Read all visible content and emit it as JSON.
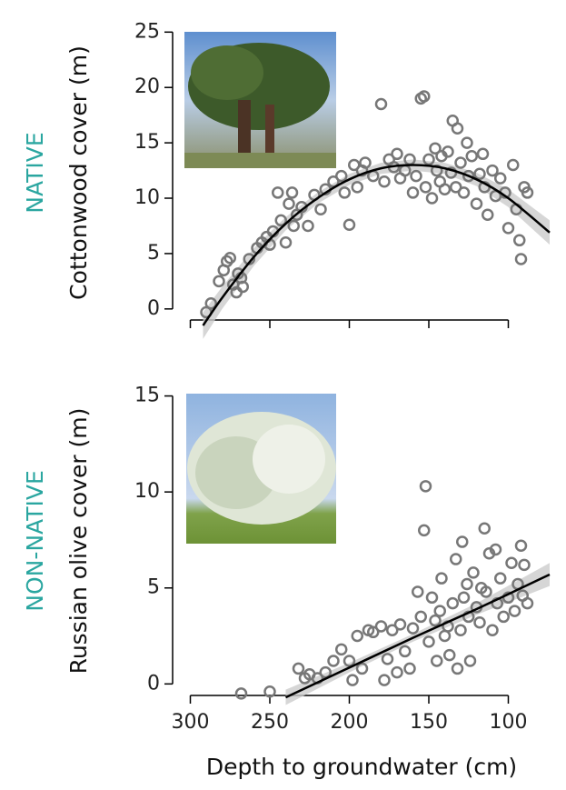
{
  "chart_data": [
    {
      "type": "scatter",
      "group_label": "NATIVE",
      "group_color": "#2aa6a0",
      "ylabel": "Cottonwood cover (m)",
      "xlim": [
        310,
        70
      ],
      "ylim": [
        -1,
        25.6
      ],
      "xticks": [
        300,
        250,
        200,
        150,
        100
      ],
      "yticks": [
        0,
        5,
        10,
        15,
        20,
        25
      ],
      "show_xtick_labels": false,
      "point_color": "#777777",
      "fit_color": "#000000",
      "band_color": "#cccccc",
      "x": [
        290,
        287,
        282,
        279,
        277,
        275,
        273,
        271,
        270,
        268,
        267,
        263,
        258,
        255,
        252,
        250,
        248,
        245,
        243,
        240,
        238,
        236,
        235,
        233,
        230,
        226,
        222,
        218,
        215,
        210,
        205,
        203,
        200,
        197,
        195,
        192,
        190,
        185,
        180,
        178,
        175,
        172,
        170,
        168,
        165,
        162,
        160,
        158,
        155,
        153,
        152,
        150,
        148,
        146,
        145,
        143,
        142,
        140,
        138,
        136,
        135,
        133,
        132,
        130,
        128,
        126,
        125,
        123,
        120,
        118,
        116,
        115,
        113,
        110,
        108,
        105,
        102,
        100,
        97,
        95,
        93,
        92,
        90,
        88
      ],
      "y": [
        -0.3,
        0.5,
        2.5,
        3.5,
        4.3,
        4.6,
        2.2,
        1.5,
        3.2,
        2.8,
        2,
        4.5,
        5.5,
        6,
        6.5,
        5.8,
        7,
        10.5,
        8,
        6,
        9.5,
        10.5,
        7.5,
        8.5,
        9.2,
        7.5,
        10.3,
        9,
        10.8,
        11.5,
        12,
        10.5,
        7.6,
        13,
        11,
        12.5,
        13.2,
        12,
        18.5,
        11.5,
        13.5,
        12.8,
        14,
        11.8,
        12.5,
        13.5,
        10.5,
        12,
        19,
        19.2,
        11,
        13.5,
        10,
        14.5,
        12.5,
        11.5,
        13.8,
        10.8,
        14.2,
        12.3,
        17,
        11,
        16.3,
        13.2,
        10.5,
        15,
        12,
        13.8,
        9.5,
        12.2,
        14,
        11,
        8.5,
        12.5,
        10.2,
        11.8,
        10.5,
        7.3,
        13,
        9,
        6.2,
        4.5,
        11,
        10.5
      ],
      "fit": {
        "x": [
          292,
          280,
          260,
          240,
          220,
          200,
          180,
          160,
          140,
          120,
          100,
          74
        ],
        "y": [
          -1.5,
          1,
          4.7,
          7.7,
          10,
          11.7,
          12.7,
          13,
          12.7,
          11.7,
          10,
          6.9
        ],
        "lower": [
          -2.7,
          0,
          3.9,
          7.1,
          9.5,
          11.2,
          12.2,
          12.5,
          12.2,
          11.1,
          9.2,
          5.8
        ],
        "upper": [
          -0.3,
          2,
          5.5,
          8.3,
          10.5,
          12.2,
          13.2,
          13.5,
          13.2,
          12.3,
          10.8,
          8
        ]
      }
    },
    {
      "type": "scatter",
      "group_label": "NON-NATIVE",
      "group_color": "#2aa6a0",
      "ylabel": "Russian olive cover (m)",
      "xlabel": "Depth to groundwater (cm)",
      "xlim": [
        310,
        70
      ],
      "ylim": [
        -0.6,
        15.5
      ],
      "xticks": [
        300,
        250,
        200,
        150,
        100
      ],
      "yticks": [
        0,
        5,
        10,
        15
      ],
      "show_xtick_labels": true,
      "point_color": "#777777",
      "fit_color": "#000000",
      "band_color": "#cccccc",
      "x": [
        268,
        250,
        232,
        228,
        225,
        220,
        215,
        210,
        205,
        200,
        198,
        195,
        192,
        188,
        185,
        180,
        178,
        176,
        173,
        170,
        168,
        165,
        162,
        160,
        157,
        155,
        153,
        152,
        150,
        148,
        146,
        145,
        143,
        142,
        140,
        138,
        137,
        135,
        133,
        132,
        130,
        129,
        128,
        126,
        125,
        124,
        122,
        120,
        118,
        117,
        115,
        114,
        112,
        110,
        108,
        107,
        105,
        103,
        100,
        98,
        96,
        94,
        92,
        91,
        90,
        88
      ],
      "y": [
        -0.5,
        -0.4,
        0.8,
        0.3,
        0.5,
        0.3,
        0.6,
        1.2,
        1.8,
        1.2,
        0.2,
        2.5,
        0.8,
        2.8,
        2.7,
        3,
        0.2,
        1.3,
        2.8,
        0.6,
        3.1,
        1.7,
        0.8,
        2.9,
        4.8,
        3.5,
        8,
        10.3,
        2.2,
        4.5,
        3.3,
        1.2,
        3.8,
        5.5,
        2.5,
        3,
        1.5,
        4.2,
        6.5,
        0.8,
        2.8,
        7.4,
        4.5,
        5.2,
        3.5,
        1.2,
        5.8,
        4,
        3.2,
        5,
        8.1,
        4.8,
        6.8,
        2.8,
        7,
        4.2,
        5.5,
        3.5,
        4.5,
        6.3,
        3.8,
        5.2,
        7.2,
        4.6,
        6.2,
        4.2
      ],
      "fit": {
        "x": [
          240,
          200,
          160,
          120,
          74
        ],
        "y": [
          -0.7,
          0.85,
          2.4,
          3.9,
          5.7
        ],
        "lower": [
          -1.1,
          0.6,
          2.2,
          3.6,
          5.1
        ],
        "upper": [
          -0.3,
          1.1,
          2.6,
          4.2,
          6.3
        ]
      }
    }
  ]
}
